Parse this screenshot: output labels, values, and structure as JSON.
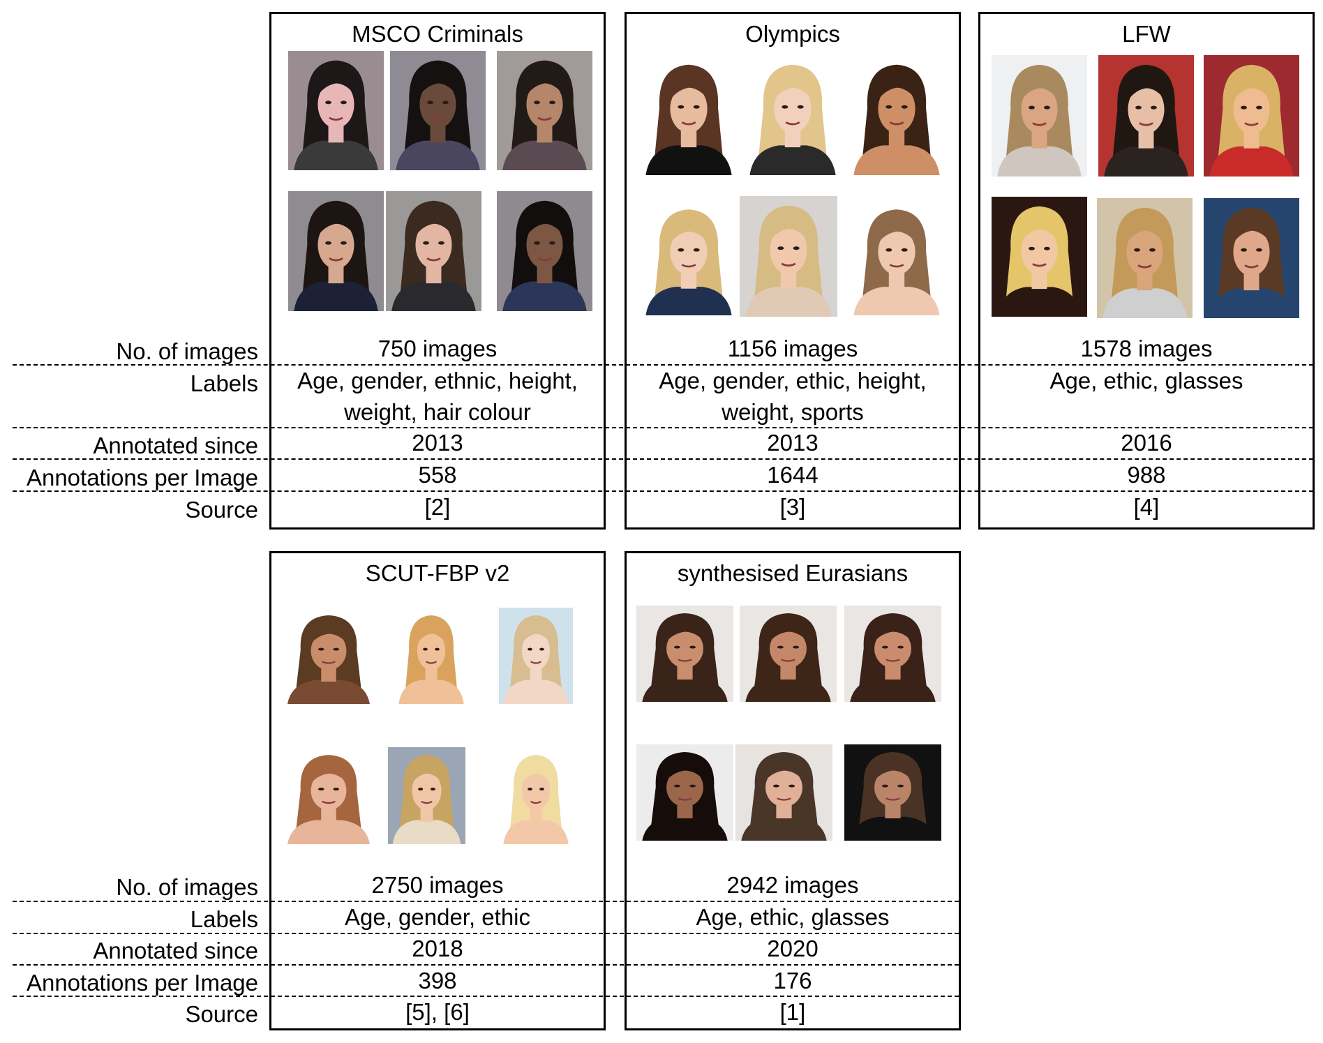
{
  "row_labels": {
    "images": "No. of images",
    "labels": "Labels",
    "since": "Annotated since",
    "per_image": "Annotations per Image",
    "source": "Source"
  },
  "datasets": [
    {
      "name": "MSCO Criminals",
      "images": "750 images",
      "labels_line1": "Age, gender, ethnic, height,",
      "labels_line2": "weight, hair colour",
      "since": "2013",
      "per_image": "558",
      "source": "[2]"
    },
    {
      "name": "Olympics",
      "images": "1156 images",
      "labels_line1": "Age, gender, ethic, height,",
      "labels_line2": "weight, sports",
      "since": "2013",
      "per_image": "1644",
      "source": "[3]"
    },
    {
      "name": "LFW",
      "images": "1578 images",
      "labels_line1": "Age, ethic, glasses",
      "labels_line2": "",
      "since": "2016",
      "per_image": "988",
      "source": "[4]"
    },
    {
      "name": "SCUT-FBP v2",
      "images": "2750 images",
      "labels_line1": "Age, gender, ethic",
      "labels_line2": "",
      "since": "2018",
      "per_image": "398",
      "source": "[5], [6]"
    },
    {
      "name": "synthesised Eurasians",
      "images": "2942 images",
      "labels_line1": "Age, ethic, glasses",
      "labels_line2": "",
      "since": "2020",
      "per_image": "176",
      "source": "[1]"
    }
  ],
  "photo_palettes": {
    "msco": [
      {
        "bg": "#9a8d92",
        "skin": "#e7b7b8",
        "hair": "#1d1718",
        "shirt": "#3a3a3a"
      },
      {
        "bg": "#8f8b94",
        "skin": "#6a4a3a",
        "hair": "#141110",
        "shirt": "#4a4660"
      },
      {
        "bg": "#a09b98",
        "skin": "#b4876a",
        "hair": "#221a17",
        "shirt": "#5a4a52"
      },
      {
        "bg": "#8f8c91",
        "skin": "#d6a88f",
        "hair": "#1c1512",
        "shirt": "#1c2138"
      },
      {
        "bg": "#9b9898",
        "skin": "#e2b6a2",
        "hair": "#3b2a1f",
        "shirt": "#2a2a2e"
      },
      {
        "bg": "#8e8a90",
        "skin": "#7d5644",
        "hair": "#120e0d",
        "shirt": "#2c3658"
      }
    ],
    "olympics": [
      {
        "bg": "#ffffff",
        "skin": "#e7bb9e",
        "hair": "#5a3523",
        "shirt": "#111111"
      },
      {
        "bg": "#ffffff",
        "skin": "#f1d1bb",
        "hair": "#e1c58b",
        "shirt": "#2a2a2a"
      },
      {
        "bg": "#ffffff",
        "skin": "#cf8f66",
        "hair": "#3a2315",
        "shirt": "#cf8f66"
      },
      {
        "bg": "#ffffff",
        "skin": "#f0cdb5",
        "hair": "#d9ba7a",
        "shirt": "#203050"
      },
      {
        "bg": "#d7d3d0",
        "skin": "#f0c9ad",
        "hair": "#d6bb83",
        "shirt": "#e0c9b5"
      },
      {
        "bg": "#ffffff",
        "skin": "#eec9b0",
        "hair": "#8e6a4a",
        "shirt": "#eec9b0"
      }
    ],
    "lfw": [
      {
        "bg": "#eef0f2",
        "skin": "#d9a583",
        "hair": "#a88a5e",
        "shirt": "#d0c6c0"
      },
      {
        "bg": "#b5342f",
        "skin": "#e6bfa6",
        "hair": "#201713",
        "shirt": "#2a2320"
      },
      {
        "bg": "#9c2a2f",
        "skin": "#eebc90",
        "hair": "#d9b266",
        "shirt": "#c92a2a"
      },
      {
        "bg": "#2b1712",
        "skin": "#f0c8a4",
        "hair": "#e5c56a",
        "shirt": "#2b1712"
      },
      {
        "bg": "#d2c4a8",
        "skin": "#d9a57a",
        "hair": "#c49a5a",
        "shirt": "#cfcfcf"
      },
      {
        "bg": "#25456e",
        "skin": "#e0a88a",
        "hair": "#5a3a24",
        "shirt": "#25456e"
      }
    ],
    "scut": [
      {
        "bg": "#ffffff",
        "skin": "#c98d6a",
        "hair": "#5b3b22",
        "shirt": "#7a4a32"
      },
      {
        "bg": "#ffffff",
        "skin": "#f0c198",
        "hair": "#d9a35e",
        "shirt": "#f0c198"
      },
      {
        "bg": "#cfe2ec",
        "skin": "#f2d6c6",
        "hair": "#d7bd8f",
        "shirt": "#f2d6c6"
      },
      {
        "bg": "#ffffff",
        "skin": "#e8b49a",
        "hair": "#a4653f",
        "shirt": "#e8b49a"
      },
      {
        "bg": "#9aa6b4",
        "skin": "#f0c7a6",
        "hair": "#c8a462",
        "shirt": "#e9dcc6"
      },
      {
        "bg": "#ffffff",
        "skin": "#f3c8a8",
        "hair": "#f0dba0",
        "shirt": "#f3c8a8"
      }
    ],
    "eurasian": [
      {
        "bg": "#e9e6e4",
        "skin": "#c98e6e",
        "hair": "#3a2318",
        "shirt": "#3a2318"
      },
      {
        "bg": "#e9e6e4",
        "skin": "#c4876a",
        "hair": "#3d2518",
        "shirt": "#3d2518"
      },
      {
        "bg": "#e9e6e4",
        "skin": "#c98c6d",
        "hair": "#3a2218",
        "shirt": "#3a2218"
      },
      {
        "bg": "#ececec",
        "skin": "#9b664c",
        "hair": "#160d0a",
        "shirt": "#160d0a"
      },
      {
        "bg": "#e6e3e0",
        "skin": "#e0b098",
        "hair": "#4a3628",
        "shirt": "#4a3628"
      },
      {
        "bg": "#111111",
        "skin": "#b98468",
        "hair": "#4a3324",
        "shirt": "#111111"
      }
    ]
  }
}
